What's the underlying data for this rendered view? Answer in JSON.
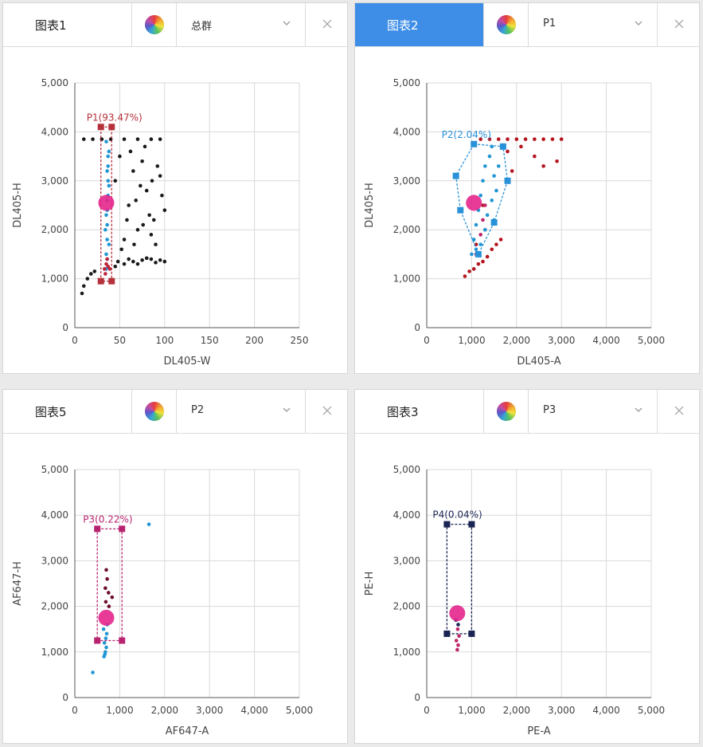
{
  "panels": [
    {
      "title": "图表1",
      "active": false,
      "gate": "总群",
      "chart_data": {
        "type": "scatter",
        "xlabel": "DL405-W",
        "ylabel": "DL405-H",
        "xlim": [
          0,
          250
        ],
        "ylim": [
          0,
          5000
        ],
        "xticks": [
          "0",
          "50",
          "100",
          "150",
          "200",
          "250"
        ],
        "yticks": [
          "0",
          "1,000",
          "2,000",
          "3,000",
          "4,000",
          "5,000"
        ],
        "grid": true,
        "gate_label": "P1(93.47%)",
        "gate_color": "#b5303a",
        "gate_points": [
          [
            29,
            4100
          ],
          [
            41,
            4100
          ],
          [
            41,
            950
          ],
          [
            29,
            950
          ]
        ],
        "gate_center": [
          35,
          2550
        ],
        "series": [
          {
            "color": "#1a1a1a",
            "points": [
              [
                8,
                700
              ],
              [
                10,
                850
              ],
              [
                14,
                1000
              ],
              [
                18,
                1100
              ],
              [
                22,
                1150
              ],
              [
                45,
                1250
              ],
              [
                55,
                1300
              ],
              [
                65,
                1350
              ],
              [
                75,
                1380
              ],
              [
                85,
                1400
              ],
              [
                95,
                1380
              ],
              [
                100,
                1350
              ],
              [
                48,
                1350
              ],
              [
                60,
                1400
              ],
              [
                70,
                1300
              ],
              [
                80,
                1420
              ],
              [
                90,
                1330
              ],
              [
                40,
                3850
              ],
              [
                55,
                3850
              ],
              [
                70,
                3850
              ],
              [
                85,
                3850
              ],
              [
                95,
                3850
              ],
              [
                45,
                3000
              ],
              [
                60,
                2500
              ],
              [
                70,
                2000
              ],
              [
                80,
                2800
              ],
              [
                90,
                1700
              ],
              [
                100,
                2400
              ],
              [
                50,
                3500
              ],
              [
                65,
                3200
              ],
              [
                75,
                3400
              ],
              [
                88,
                2200
              ],
              [
                95,
                3100
              ],
              [
                55,
                1800
              ],
              [
                68,
                2600
              ],
              [
                78,
                3700
              ],
              [
                85,
                1900
              ],
              [
                92,
                3300
              ],
              [
                10,
                3850
              ],
              [
                20,
                3850
              ],
              [
                30,
                3850
              ],
              [
                58,
                2200
              ],
              [
                62,
                3600
              ],
              [
                73,
                2900
              ],
              [
                83,
                2300
              ],
              [
                97,
                2700
              ],
              [
                52,
                1600
              ],
              [
                66,
                1700
              ],
              [
                76,
                2100
              ],
              [
                86,
                3000
              ]
            ]
          },
          {
            "color": "#2196d3",
            "points": [
              [
                35,
                1200
              ],
              [
                35,
                1500
              ],
              [
                36,
                1800
              ],
              [
                36,
                2100
              ],
              [
                36,
                2400
              ],
              [
                37,
                2700
              ],
              [
                37,
                3000
              ],
              [
                37,
                3300
              ],
              [
                38,
                3600
              ],
              [
                36,
                1400
              ],
              [
                38,
                1700
              ],
              [
                34,
                2000
              ],
              [
                35,
                2300
              ],
              [
                36,
                2600
              ],
              [
                38,
                2900
              ],
              [
                36,
                3200
              ],
              [
                37,
                3500
              ],
              [
                35,
                3800
              ]
            ]
          },
          {
            "color": "#c0243a",
            "points": [
              [
                33,
                1200
              ],
              [
                35,
                1300
              ],
              [
                37,
                1250
              ],
              [
                39,
                1200
              ],
              [
                36,
                1400
              ],
              [
                34,
                1100
              ]
            ]
          }
        ]
      }
    },
    {
      "title": "图表2",
      "active": true,
      "gate": "P1",
      "chart_data": {
        "type": "scatter",
        "xlabel": "DL405-A",
        "ylabel": "DL405-H",
        "xlim": [
          0,
          5000
        ],
        "ylim": [
          0,
          5000
        ],
        "xticks": [
          "0",
          "1,000",
          "2,000",
          "3,000",
          "4,000",
          "5,000"
        ],
        "yticks": [
          "0",
          "1,000",
          "2,000",
          "3,000",
          "4,000",
          "5,000"
        ],
        "grid": true,
        "gate_label": "P2(2.04%)",
        "gate_color": "#2891d8",
        "gate_points": [
          [
            1050,
            3750
          ],
          [
            1700,
            3700
          ],
          [
            1800,
            3000
          ],
          [
            1500,
            2150
          ],
          [
            1150,
            1500
          ],
          [
            750,
            2400
          ],
          [
            650,
            3100
          ]
        ],
        "gate_center": [
          1050,
          2550
        ],
        "series": [
          {
            "color": "#b5141e",
            "points": [
              [
                850,
                1050
              ],
              [
                950,
                1150
              ],
              [
                1050,
                1200
              ],
              [
                1150,
                1300
              ],
              [
                1250,
                1350
              ],
              [
                1350,
                1450
              ],
              [
                1450,
                1600
              ],
              [
                1550,
                1700
              ],
              [
                1650,
                1800
              ],
              [
                1200,
                3850
              ],
              [
                1400,
                3850
              ],
              [
                1600,
                3850
              ],
              [
                1800,
                3850
              ],
              [
                2000,
                3850
              ],
              [
                2200,
                3850
              ],
              [
                2400,
                3850
              ],
              [
                2600,
                3850
              ],
              [
                2800,
                3850
              ],
              [
                3000,
                3850
              ],
              [
                2100,
                3700
              ],
              [
                2400,
                3500
              ],
              [
                2600,
                3300
              ],
              [
                2900,
                3400
              ],
              [
                1800,
                3600
              ],
              [
                1900,
                3200
              ],
              [
                1100,
                1700
              ],
              [
                1300,
                2000
              ],
              [
                1250,
                2500
              ]
            ]
          },
          {
            "color": "#2196d3",
            "points": [
              [
                1000,
                1500
              ],
              [
                1050,
                1800
              ],
              [
                1100,
                2100
              ],
              [
                1150,
                2400
              ],
              [
                1200,
                2700
              ],
              [
                1250,
                3000
              ],
              [
                1300,
                3300
              ],
              [
                1400,
                3500
              ],
              [
                1500,
                3100
              ],
              [
                1550,
                2800
              ],
              [
                1450,
                2600
              ],
              [
                1350,
                2300
              ],
              [
                1300,
                2000
              ],
              [
                1200,
                1700
              ],
              [
                1100,
                1600
              ],
              [
                1500,
                2200
              ],
              [
                1600,
                3300
              ],
              [
                1450,
                3700
              ]
            ]
          },
          {
            "color": "#c0246a",
            "points": [
              [
                1100,
                1500
              ],
              [
                1200,
                1900
              ],
              [
                1250,
                2200
              ],
              [
                1300,
                2500
              ]
            ]
          }
        ]
      }
    },
    {
      "title": "图表5",
      "active": false,
      "gate": "P2",
      "chart_data": {
        "type": "scatter",
        "xlabel": "AF647-A",
        "ylabel": "AF647-H",
        "xlim": [
          0,
          5000
        ],
        "ylim": [
          0,
          5000
        ],
        "xticks": [
          "0",
          "1,000",
          "2,000",
          "3,000",
          "4,000",
          "5,000"
        ],
        "yticks": [
          "0",
          "1,000",
          "2,000",
          "3,000",
          "4,000",
          "5,000"
        ],
        "grid": true,
        "gate_label": "P3(0.22%)",
        "gate_color": "#b8236f",
        "gate_points": [
          [
            500,
            3700
          ],
          [
            1050,
            3700
          ],
          [
            1050,
            1250
          ],
          [
            500,
            1250
          ]
        ],
        "gate_center": [
          700,
          1750
        ],
        "series": [
          {
            "color": "#2196d3",
            "points": [
              [
                650,
                900
              ],
              [
                680,
                1000
              ],
              [
                700,
                1100
              ],
              [
                660,
                1200
              ],
              [
                690,
                1300
              ],
              [
                710,
                1400
              ],
              [
                640,
                1500
              ],
              [
                720,
                1600
              ],
              [
                400,
                550
              ],
              [
                1650,
                3800
              ],
              [
                670,
                950
              ]
            ]
          },
          {
            "color": "#6d0d2b",
            "points": [
              [
                700,
                2800
              ],
              [
                720,
                2600
              ],
              [
                680,
                2400
              ],
              [
                750,
                2300
              ],
              [
                830,
                2200
              ],
              [
                760,
                2000
              ],
              [
                690,
                2100
              ]
            ]
          }
        ]
      }
    },
    {
      "title": "图表3",
      "active": false,
      "gate": "P3",
      "chart_data": {
        "type": "scatter",
        "xlabel": "PE-A",
        "ylabel": "PE-H",
        "xlim": [
          0,
          5000
        ],
        "ylim": [
          0,
          5000
        ],
        "xticks": [
          "0",
          "1,000",
          "2,000",
          "3,000",
          "4,000",
          "5,000"
        ],
        "yticks": [
          "0",
          "1,000",
          "2,000",
          "3,000",
          "4,000",
          "5,000"
        ],
        "grid": true,
        "gate_label": "P4(0.04%)",
        "gate_color": "#1b2553",
        "gate_points": [
          [
            450,
            3800
          ],
          [
            1000,
            3800
          ],
          [
            1000,
            1400
          ],
          [
            450,
            1400
          ]
        ],
        "gate_center": [
          680,
          1850
        ],
        "series": [
          {
            "color": "#c0246a",
            "points": [
              [
                680,
                1050
              ],
              [
                700,
                1150
              ],
              [
                660,
                1250
              ],
              [
                720,
                1350
              ],
              [
                690,
                1500
              ]
            ]
          },
          {
            "color": "#1b2553",
            "points": [
              [
                650,
                1700
              ],
              [
                700,
                1600
              ]
            ]
          }
        ]
      }
    }
  ]
}
